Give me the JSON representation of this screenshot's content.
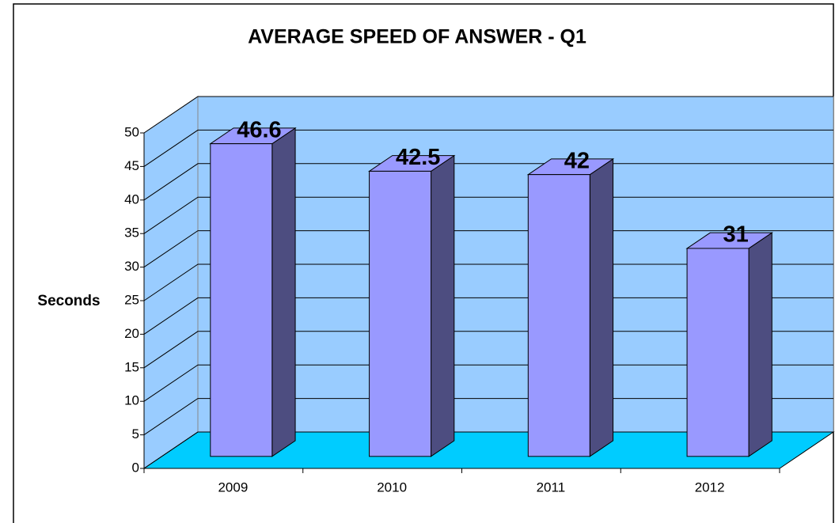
{
  "chart_data": {
    "type": "bar",
    "title": "AVERAGE SPEED OF ANSWER - Q1",
    "y_label": "Seconds",
    "categories": [
      "2009",
      "2010",
      "2011",
      "2012"
    ],
    "values": [
      46.6,
      42.5,
      42,
      31
    ],
    "color": "#9999ff",
    "side_color": "#4d4d80",
    "wall_color": "#99ccff",
    "floor_color": "#00ccff",
    "ylim": [
      0,
      50
    ],
    "yticks": [
      0,
      5,
      10,
      15,
      20,
      25,
      30,
      35,
      40,
      45,
      50
    ],
    "grid": true
  }
}
